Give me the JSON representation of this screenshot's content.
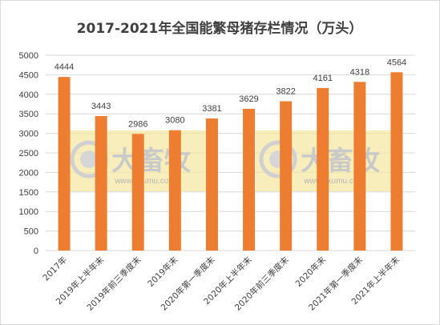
{
  "chart_data": {
    "type": "bar",
    "title": "2017-2021年全国能繁母猪存栏情况（万头）",
    "categories": [
      "2017年",
      "2019年上半年末",
      "2019年前三季度末",
      "2019年末",
      "2020年第一季度末",
      "2020年上半年末",
      "2020年前三季度末",
      "2020年末",
      "2021年第一季度末",
      "2021年上半年末"
    ],
    "values": [
      4444,
      3443,
      2986,
      3080,
      3381,
      3629,
      3822,
      4161,
      4318,
      4564
    ],
    "ylim": [
      0,
      5000
    ],
    "yticks": [
      "0",
      "500",
      "1000",
      "1500",
      "2000",
      "2500",
      "3000",
      "3500",
      "4000",
      "4500",
      "5000"
    ],
    "grid": true,
    "legend": "none",
    "colors": {
      "bar": "#ed7d31",
      "grid": "#d9d9d9",
      "text": "#404040"
    }
  },
  "watermark": {
    "text": "大畜牧",
    "url": "www.dxumu.com",
    "color": "#f3e7a0"
  }
}
